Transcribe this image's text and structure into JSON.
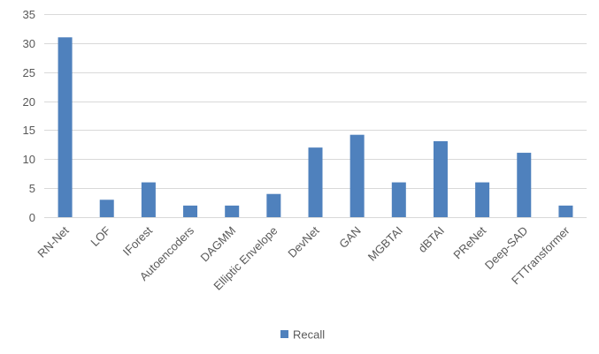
{
  "chart_data": {
    "type": "bar",
    "title": "",
    "xlabel": "",
    "ylabel": "",
    "categories": [
      "RN-Net",
      "LOF",
      "IForest",
      "Autoencoders",
      "DAGMM",
      "Elliptic Envelope",
      "DevNet",
      "GAN",
      "MGBTAI",
      "dBTAI",
      "PReNet",
      "Deep-SAD",
      "FTTransformer"
    ],
    "series": [
      {
        "name": "Recall",
        "values": [
          31,
          3,
          6,
          2,
          2,
          4,
          12,
          14.2,
          6,
          13.1,
          6,
          11.1,
          2
        ],
        "color": "#4f81bd"
      }
    ],
    "ylim": [
      0,
      35
    ],
    "yticks": [
      0,
      5,
      10,
      15,
      20,
      25,
      30,
      35
    ],
    "grid": true,
    "gridColor": "#d9d9d9",
    "legend": "bottom-center"
  }
}
